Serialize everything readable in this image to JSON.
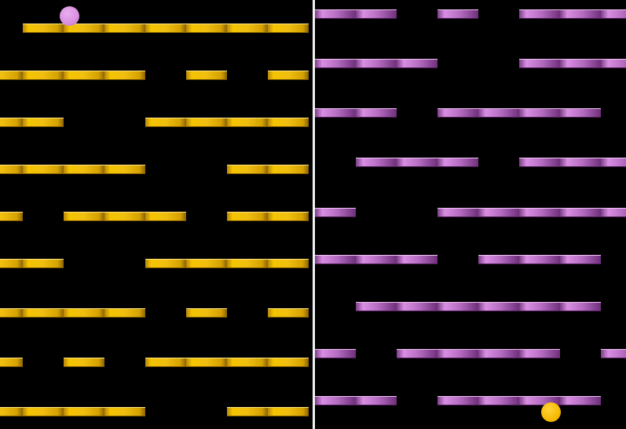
{
  "board": {
    "columns": 8,
    "left_half": {
      "theme": "gold",
      "rows": [
        [
          0,
          1,
          1,
          1,
          1,
          1,
          1,
          1
        ],
        [
          1,
          1,
          1,
          1,
          0,
          1,
          0,
          1
        ],
        [
          1,
          1,
          0,
          0,
          1,
          1,
          1,
          1
        ],
        [
          1,
          1,
          1,
          1,
          0,
          0,
          1,
          1
        ],
        [
          1,
          0,
          1,
          1,
          1,
          0,
          1,
          1
        ],
        [
          1,
          1,
          0,
          0,
          1,
          1,
          1,
          1
        ],
        [
          1,
          1,
          1,
          1,
          0,
          1,
          0,
          1
        ],
        [
          1,
          0,
          1,
          0,
          1,
          1,
          1,
          1
        ],
        [
          1,
          1,
          1,
          1,
          0,
          0,
          1,
          1
        ]
      ]
    },
    "right_half": {
      "theme": "purple",
      "rows": [
        [
          1,
          1,
          0,
          1,
          0,
          1,
          1,
          1
        ],
        [
          1,
          1,
          1,
          0,
          0,
          1,
          1,
          1
        ],
        [
          1,
          1,
          0,
          1,
          1,
          1,
          1,
          0
        ],
        [
          0,
          1,
          1,
          1,
          0,
          1,
          1,
          1
        ],
        [
          1,
          0,
          0,
          1,
          1,
          1,
          1,
          1
        ],
        [
          1,
          1,
          1,
          0,
          1,
          1,
          1,
          0
        ],
        [
          0,
          1,
          1,
          1,
          1,
          1,
          1,
          0
        ],
        [
          1,
          0,
          1,
          1,
          1,
          1,
          0,
          1
        ],
        [
          1,
          1,
          0,
          1,
          1,
          1,
          1,
          0
        ]
      ]
    }
  },
  "balls": [
    {
      "id": "pink-ball",
      "color": "#d98fde",
      "half": "left"
    },
    {
      "id": "gold-ball",
      "color": "#f5b800",
      "half": "right"
    }
  ],
  "colors": {
    "background": "#000000",
    "divider": "#f2f2f2",
    "gold_platform": "#f0be10",
    "purple_platform": "#b46cc1"
  }
}
